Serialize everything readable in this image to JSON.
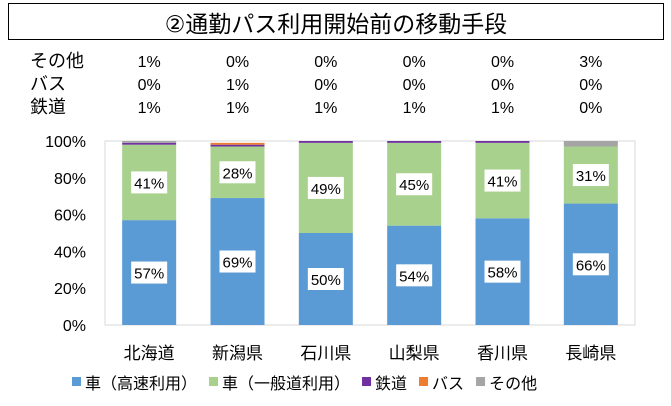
{
  "chart_data": {
    "type": "bar",
    "stacked": true,
    "title": "②通勤パス利用開始前の移動手段",
    "categories": [
      "北海道",
      "新潟県",
      "石川県",
      "山梨県",
      "香川県",
      "長崎県"
    ],
    "series": [
      {
        "name": "車（高速利用）",
        "values": [
          57,
          69,
          50,
          54,
          58,
          66
        ],
        "color": "#5B9BD5",
        "labeled": true
      },
      {
        "name": "車（一般道利用）",
        "values": [
          41,
          28,
          49,
          45,
          41,
          31
        ],
        "color": "#A9D18E",
        "labeled": true
      },
      {
        "name": "鉄道",
        "values": [
          1,
          1,
          1,
          1,
          1,
          0
        ],
        "color": "#7030A0",
        "labeled": false
      },
      {
        "name": "バス",
        "values": [
          0,
          1,
          0,
          0,
          0,
          0
        ],
        "color": "#ED7D31",
        "labeled": false
      },
      {
        "name": "その他",
        "values": [
          1,
          0,
          0,
          0,
          0,
          3
        ],
        "color": "#A5A5A5",
        "labeled": false
      }
    ],
    "table_rows": [
      {
        "label": "その他",
        "values": [
          "1%",
          "0%",
          "0%",
          "0%",
          "0%",
          "3%"
        ]
      },
      {
        "label": "バス",
        "values": [
          "0%",
          "1%",
          "0%",
          "0%",
          "0%",
          "0%"
        ]
      },
      {
        "label": "鉄道",
        "values": [
          "1%",
          "1%",
          "1%",
          "1%",
          "1%",
          "0%"
        ]
      }
    ],
    "ylim": [
      0,
      100
    ],
    "yticks": [
      "0%",
      "20%",
      "40%",
      "60%",
      "80%",
      "100%"
    ],
    "legend_position": "bottom",
    "xlabel": "",
    "ylabel": ""
  }
}
